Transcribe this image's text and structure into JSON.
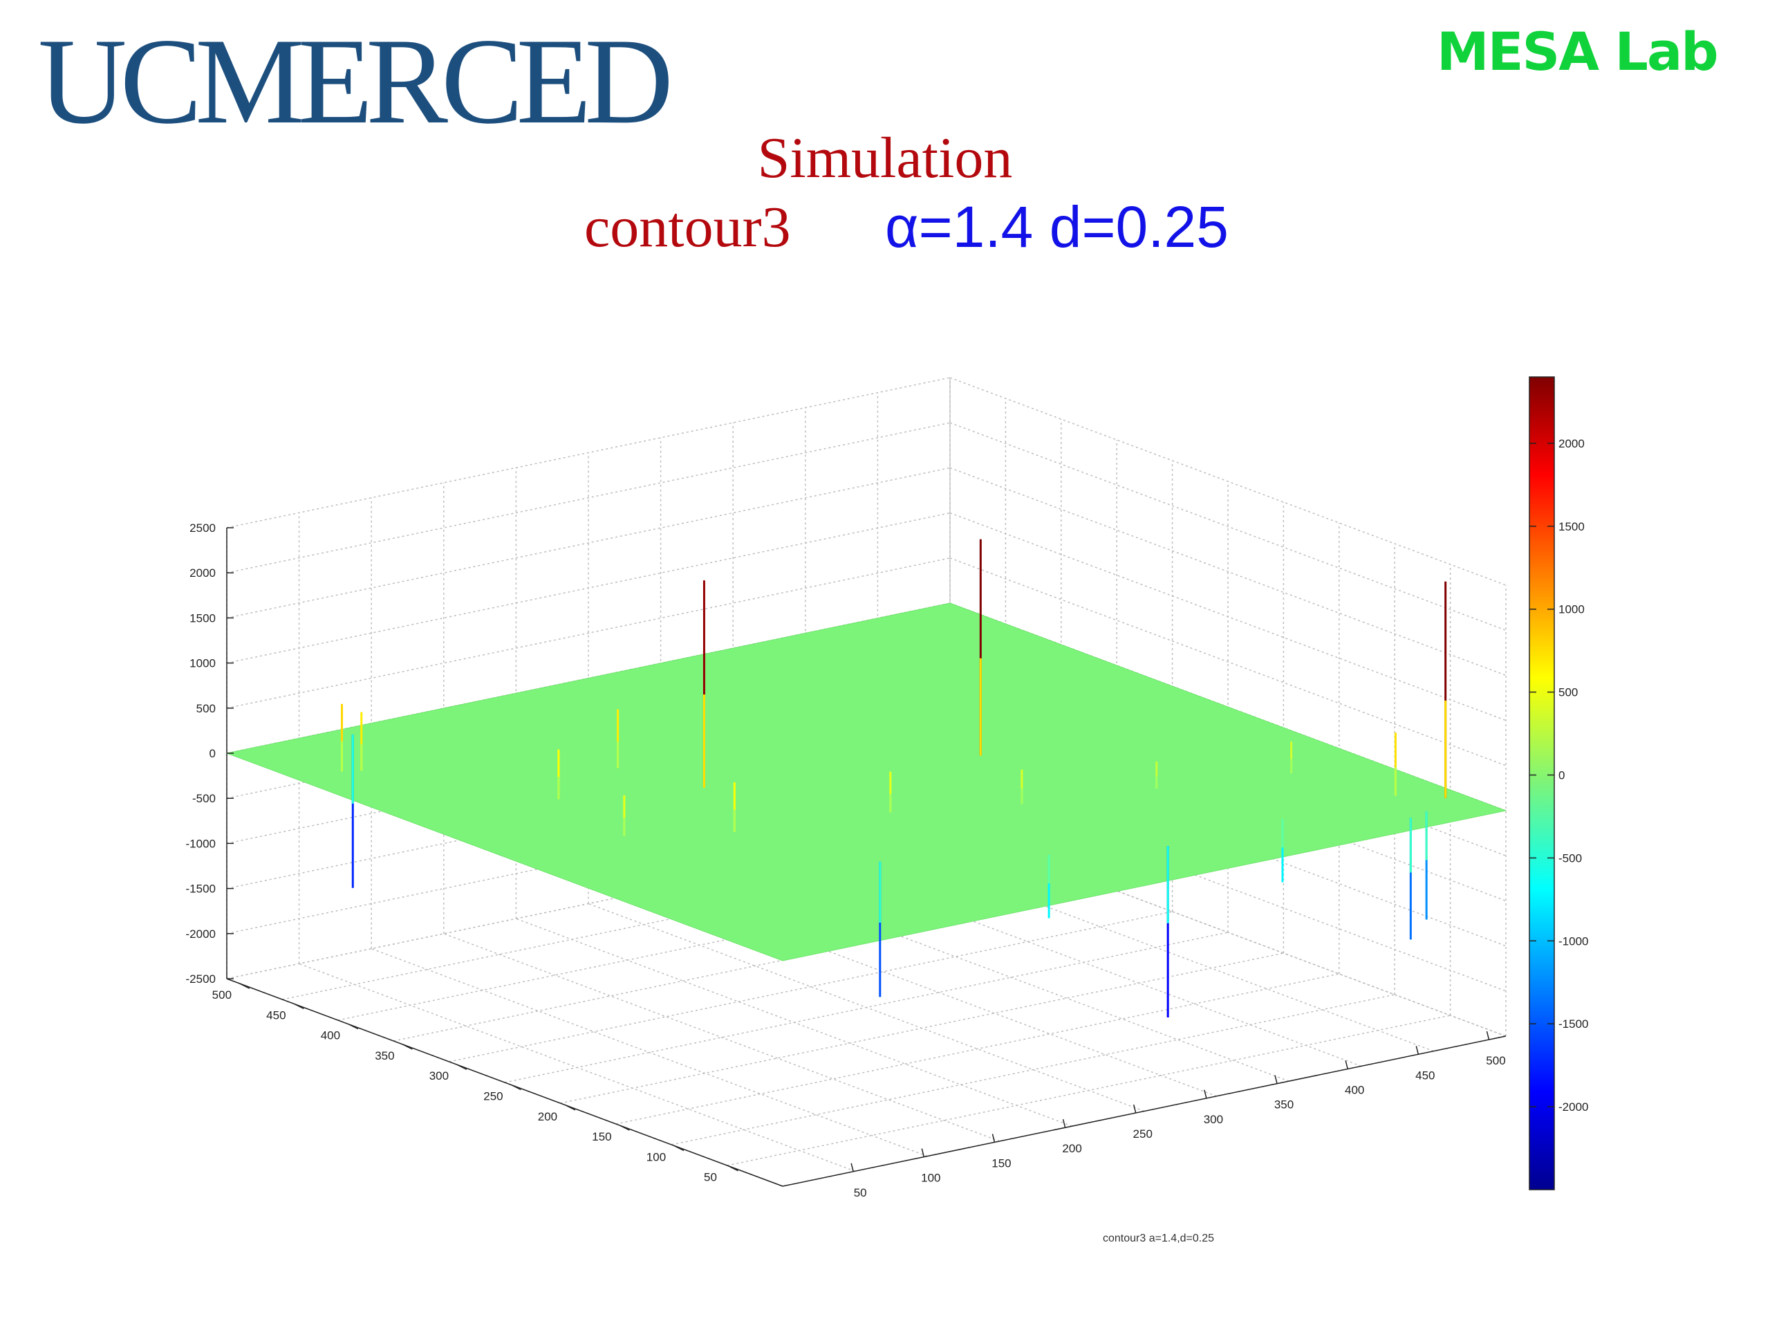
{
  "header": {
    "logo_text": "UCMERCED",
    "lab_name": "MESA Lab",
    "title": "Simulation",
    "subtitle": "contour3",
    "params": "α=1.4 d=0.25"
  },
  "colors": {
    "logo": "#1d4f7e",
    "lab": "#10d23a",
    "title": "#b3080d",
    "params": "#1212e8",
    "surface": "#7cf47a"
  },
  "chart_data": {
    "type": "surface3d",
    "caption": "contour3 a=1.4,d=0.25",
    "x_ticks": [
      50,
      100,
      150,
      200,
      250,
      300,
      350,
      400,
      450,
      500
    ],
    "y_ticks": [
      50,
      100,
      150,
      200,
      250,
      300,
      350,
      400,
      450,
      500
    ],
    "z_ticks": [
      -2500,
      -2000,
      -1500,
      -1000,
      -500,
      0,
      500,
      1000,
      1500,
      2000,
      2500
    ],
    "xlim": [
      0,
      512
    ],
    "ylim": [
      0,
      512
    ],
    "zlim": [
      -2500,
      2500
    ],
    "colorbar": {
      "ticks": [
        -2000,
        -1500,
        -1000,
        -500,
        0,
        500,
        1000,
        1500,
        2000
      ],
      "range": [
        -2500,
        2400
      ],
      "colormap": "jet"
    },
    "surface_level": 0,
    "spikes": [
      {
        "x": 175,
        "y": 300,
        "z": 2300
      },
      {
        "x": 340,
        "y": 260,
        "z": 2400
      },
      {
        "x": 500,
        "y": 40,
        "z": 2400
      },
      {
        "x": 40,
        "y": 440,
        "z": 650
      },
      {
        "x": 30,
        "y": 445,
        "z": 750
      },
      {
        "x": 95,
        "y": 330,
        "z": 550
      },
      {
        "x": 160,
        "y": 360,
        "z": 650
      },
      {
        "x": 80,
        "y": 250,
        "z": 450
      },
      {
        "x": 135,
        "y": 220,
        "z": 550
      },
      {
        "x": 230,
        "y": 200,
        "z": 450
      },
      {
        "x": 300,
        "y": 170,
        "z": 380
      },
      {
        "x": 460,
        "y": 130,
        "z": 350
      },
      {
        "x": 480,
        "y": 60,
        "z": 700
      },
      {
        "x": 380,
        "y": 150,
        "z": 300
      },
      {
        "x": 80,
        "y": 500,
        "z": -1700
      },
      {
        "x": 165,
        "y": 125,
        "z": -1500
      },
      {
        "x": 315,
        "y": 55,
        "z": -1900
      },
      {
        "x": 460,
        "y": 20,
        "z": -1350
      },
      {
        "x": 475,
        "y": 25,
        "z": -1200
      },
      {
        "x": 250,
        "y": 80,
        "z": -700
      },
      {
        "x": 400,
        "y": 60,
        "z": -700
      }
    ]
  }
}
